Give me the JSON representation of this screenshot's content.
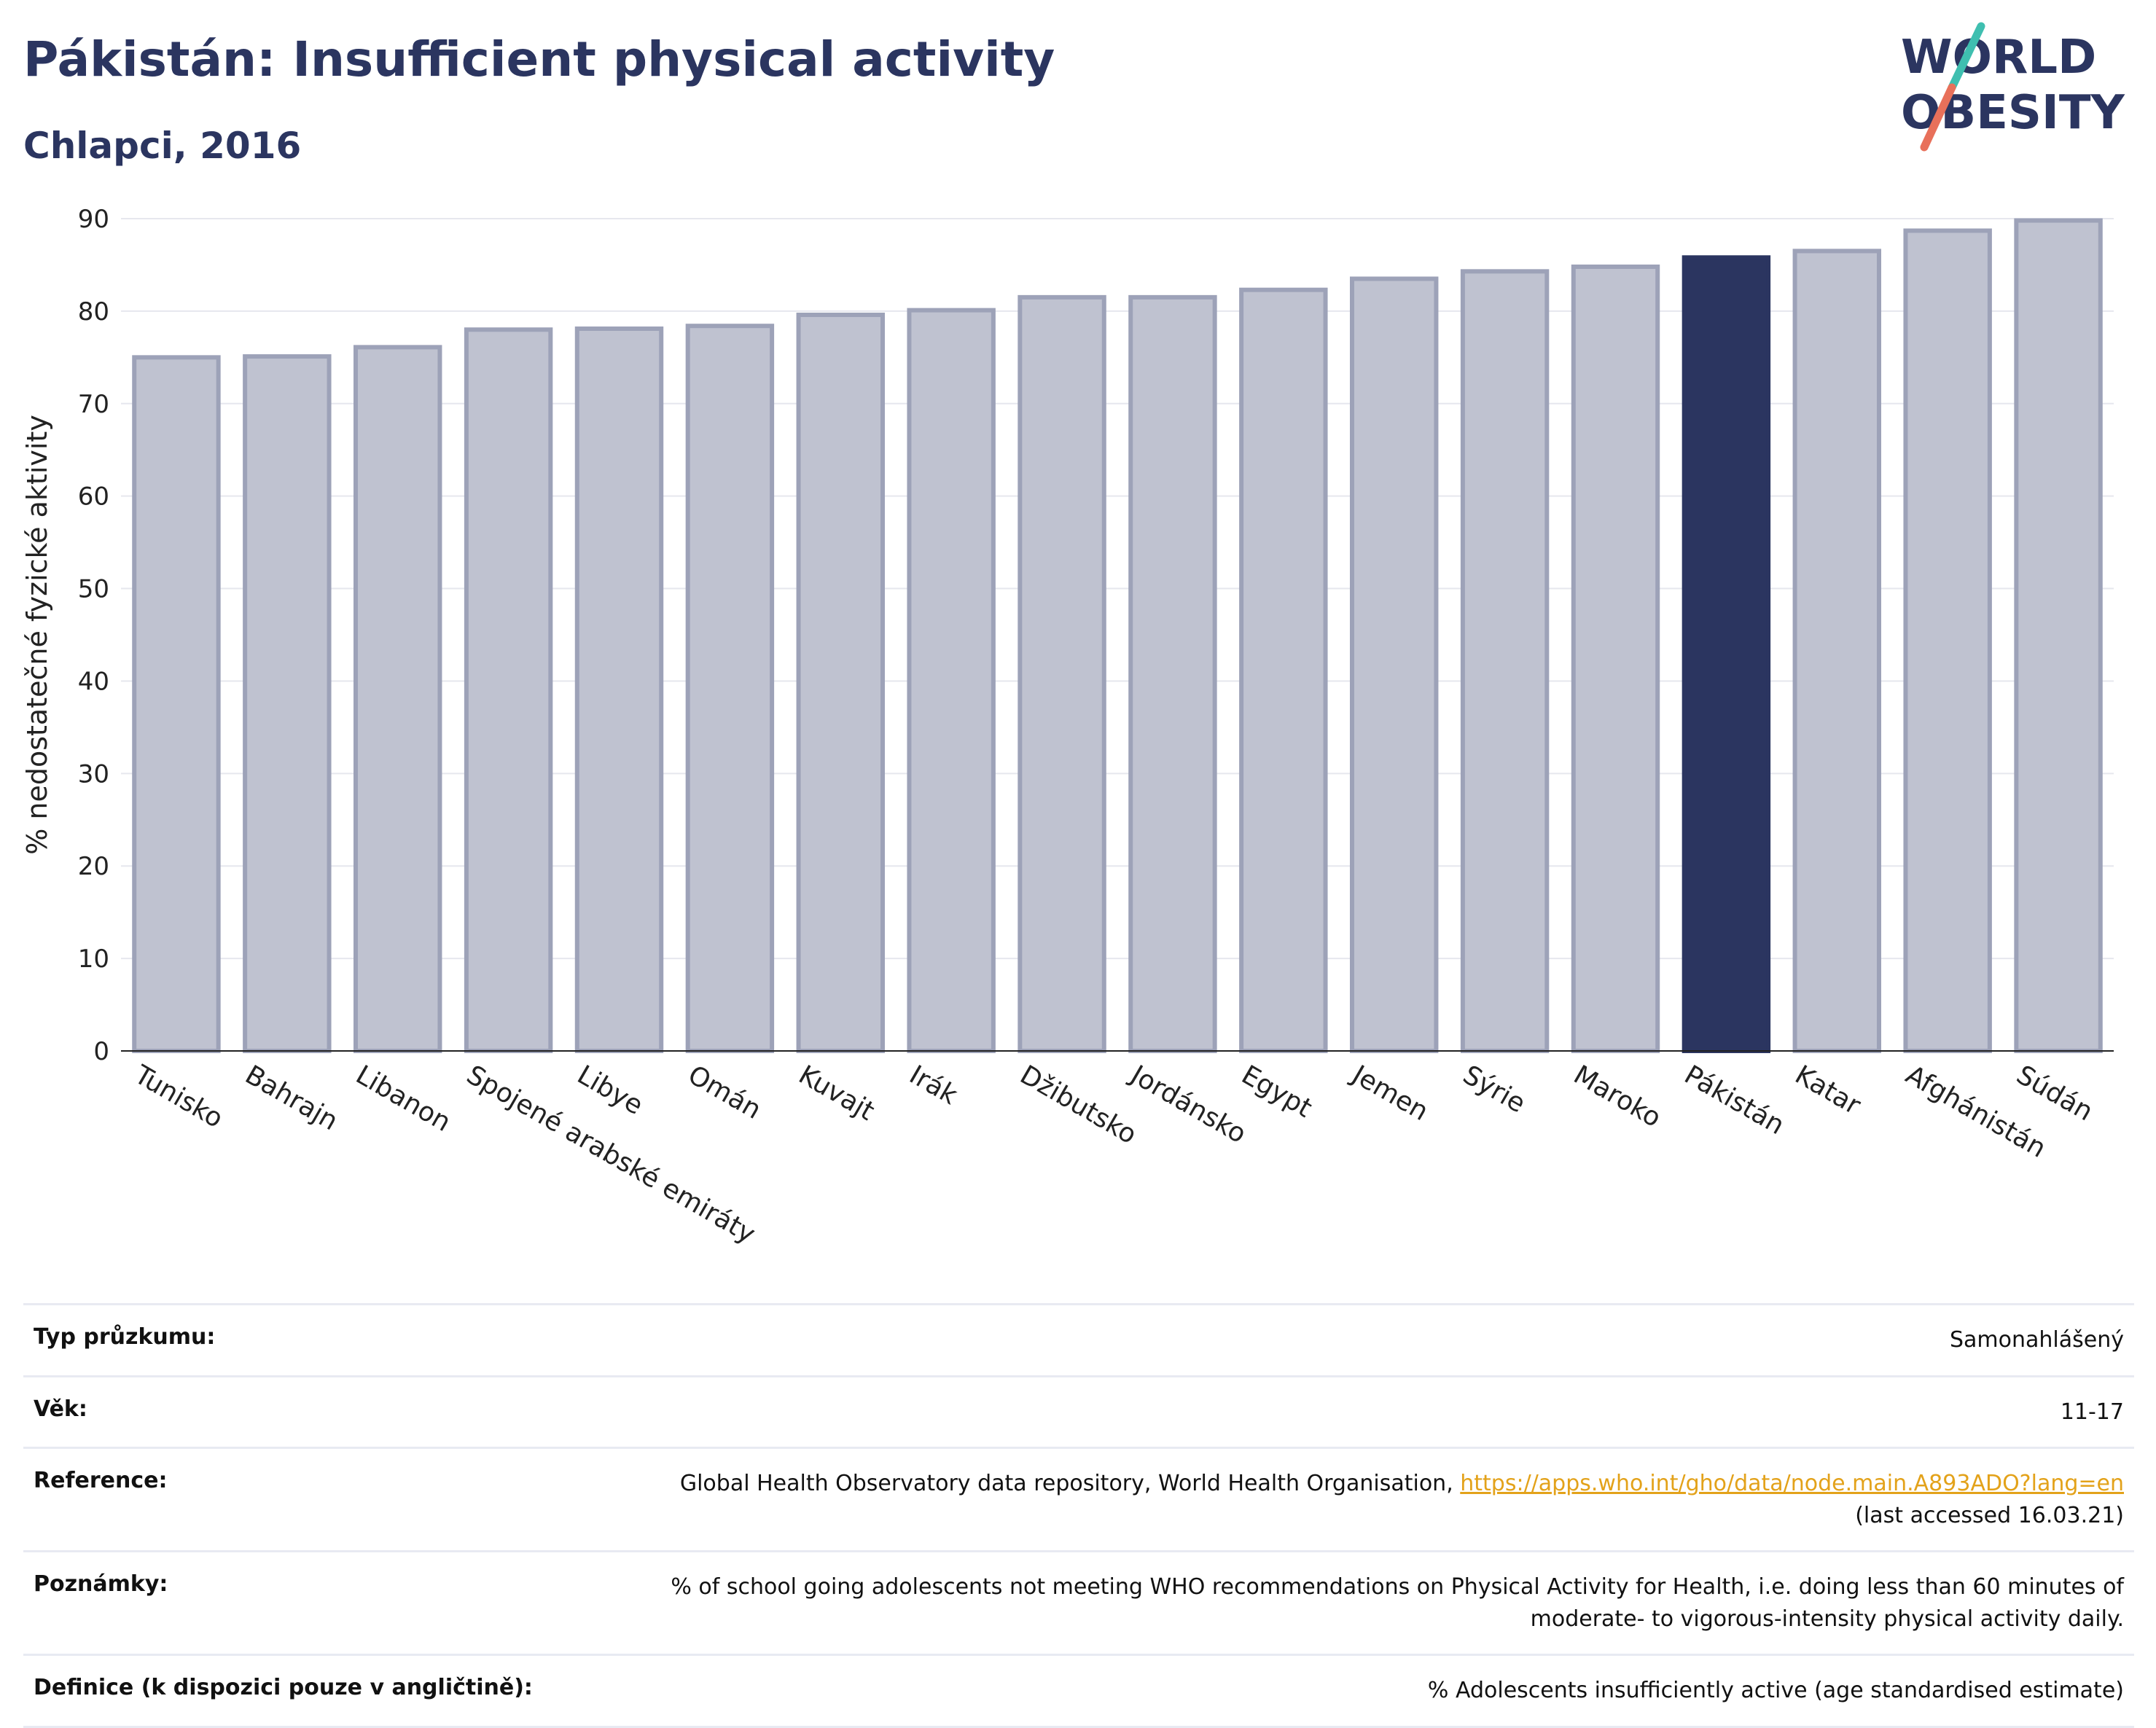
{
  "header": {
    "title": "Pákistán: Insufficient physical activity",
    "subtitle": "Chlapci, 2016"
  },
  "logo": {
    "line1": "WORLD",
    "line2": "OBESITY",
    "accent_colors": [
      "#3fbfb0",
      "#e8705a"
    ]
  },
  "chart_data": {
    "type": "bar",
    "title": "Pákistán: Insufficient physical activity",
    "subtitle": "Chlapci, 2016",
    "ylabel": "% nedostatečné fyzické aktivity",
    "xlabel": "",
    "ylim": [
      0,
      90
    ],
    "yticks": [
      0,
      10,
      20,
      30,
      40,
      50,
      60,
      70,
      80,
      90
    ],
    "grid": true,
    "categories": [
      "Tunisko",
      "Bahrajn",
      "Libanon",
      "Spojené arabské emiráty",
      "Libye",
      "Omán",
      "Kuvajt",
      "Irák",
      "Džibutsko",
      "Jordánsko",
      "Egypt",
      "Jemen",
      "Sýrie",
      "Maroko",
      "Pákistán",
      "Katar",
      "Afghánistán",
      "Súdán"
    ],
    "values": [
      75.0,
      75.1,
      76.1,
      78.0,
      78.1,
      78.4,
      79.6,
      80.1,
      81.5,
      81.5,
      82.3,
      83.5,
      84.3,
      84.8,
      85.8,
      86.5,
      88.7,
      89.8
    ],
    "highlight": "Pákistán",
    "colors": {
      "bar": "#bfc2d0",
      "bar_border": "#9da2b8",
      "highlight": "#2b3560"
    }
  },
  "info": [
    {
      "key": "Typ průzkumu:",
      "value": "Samonahlášený"
    },
    {
      "key": "Věk:",
      "value": "11-17"
    },
    {
      "key": "Reference:",
      "value": "Global Health Observatory data repository, World Health Organisation, ",
      "link": "https://apps.who.int/gho/data/node.main.A893ADO?lang=en",
      "suffix": "(last accessed 16.03.21)"
    },
    {
      "key": "Poznámky:",
      "value": "% of school going adolescents not meeting WHO recommendations on Physical Activity for Health, i.e. doing less than 60 minutes of",
      "value2": "moderate- to vigorous-intensity physical activity daily."
    },
    {
      "key": "Definice (k dispozici pouze v angličtině):",
      "value": "% Adolescents insufficiently active (age standardised estimate)"
    }
  ]
}
